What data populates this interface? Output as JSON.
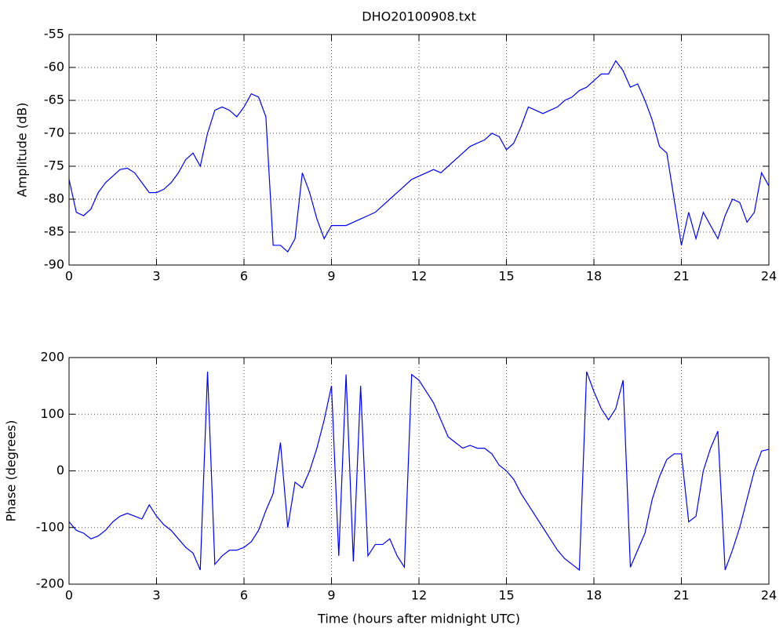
{
  "chart_data": [
    {
      "type": "line",
      "title": "DHO20100908.txt",
      "y_label": "Amplitude (dB)",
      "x": [
        0,
        0.25,
        0.5,
        0.75,
        1,
        1.25,
        1.5,
        1.75,
        2,
        2.25,
        2.5,
        2.75,
        3,
        3.25,
        3.5,
        3.75,
        4,
        4.25,
        4.5,
        4.75,
        5,
        5.25,
        5.5,
        5.75,
        6,
        6.25,
        6.5,
        6.75,
        7,
        7.25,
        7.5,
        7.75,
        8,
        8.25,
        8.5,
        8.75,
        9,
        9.25,
        9.5,
        9.75,
        10,
        10.25,
        10.5,
        10.75,
        11,
        11.25,
        11.5,
        11.75,
        12,
        12.25,
        12.5,
        12.75,
        13,
        13.25,
        13.5,
        13.75,
        14,
        14.25,
        14.5,
        14.75,
        15,
        15.25,
        15.5,
        15.75,
        16,
        16.25,
        16.5,
        16.75,
        17,
        17.25,
        17.5,
        17.75,
        18,
        18.25,
        18.5,
        18.75,
        19,
        19.25,
        19.5,
        19.75,
        20,
        20.25,
        20.5,
        20.75,
        21,
        21.25,
        21.5,
        21.75,
        22,
        22.25,
        22.5,
        22.75,
        23,
        23.25,
        23.5,
        23.75,
        24
      ],
      "series": [
        {
          "color": "#0000ff",
          "values": [
            -77,
            -82,
            -82.5,
            -81.5,
            -79,
            -77.5,
            -76.5,
            -75.5,
            -75.3,
            -76,
            -77.5,
            -79,
            -79,
            -78.5,
            -77.5,
            -76,
            -74,
            -73,
            -75,
            -70,
            -66.5,
            -66,
            -66.5,
            -67.5,
            -66,
            -64,
            -64.5,
            -67.5,
            -87,
            -87,
            -88,
            -86,
            -76,
            -79,
            -83,
            -86,
            -84,
            -84,
            -84,
            -83.5,
            -83,
            -82.5,
            -82,
            -81,
            -80,
            -79,
            -78,
            -77,
            -76.5,
            -76,
            -75.5,
            -76,
            -75,
            -74,
            -73,
            -72,
            -71.5,
            -71,
            -70,
            -70.5,
            -72.5,
            -71.5,
            -69,
            -66,
            -66.5,
            -67,
            -66.5,
            -66,
            -65,
            -64.5,
            -63.5,
            -63,
            -62,
            -61,
            -61,
            -59,
            -60.5,
            -63,
            -62.5,
            -65,
            -68,
            -72,
            -73,
            -80,
            -87,
            -82,
            -86,
            -82,
            -84,
            -86,
            -82.5,
            -80,
            -80.5,
            -83.5,
            -82,
            -76,
            -78
          ]
        }
      ],
      "xlim": [
        0,
        24
      ],
      "xticks": [
        0,
        3,
        6,
        9,
        12,
        15,
        18,
        21,
        24
      ],
      "ylim": [
        -90,
        -55
      ],
      "yticks": [
        -90,
        -85,
        -80,
        -75,
        -70,
        -65,
        -60,
        -55
      ],
      "grid": true
    },
    {
      "type": "line",
      "x_label": "Time (hours after midnight UTC)",
      "y_label": "Phase (degrees)",
      "x": [
        0,
        0.25,
        0.5,
        0.75,
        1,
        1.25,
        1.5,
        1.75,
        2,
        2.25,
        2.5,
        2.75,
        3,
        3.25,
        3.5,
        3.75,
        4,
        4.25,
        4.5,
        4.75,
        5,
        5.25,
        5.5,
        5.75,
        6,
        6.25,
        6.5,
        6.75,
        7,
        7.25,
        7.5,
        7.75,
        8,
        8.25,
        8.5,
        8.75,
        9,
        9.25,
        9.5,
        9.75,
        10,
        10.25,
        10.5,
        10.75,
        11,
        11.25,
        11.5,
        11.75,
        12,
        12.25,
        12.5,
        12.75,
        13,
        13.25,
        13.5,
        13.75,
        14,
        14.25,
        14.5,
        14.75,
        15,
        15.25,
        15.5,
        15.75,
        16,
        16.25,
        16.5,
        16.75,
        17,
        17.25,
        17.5,
        17.75,
        18,
        18.25,
        18.5,
        18.75,
        19,
        19.25,
        19.5,
        19.75,
        20,
        20.25,
        20.5,
        20.75,
        21,
        21.25,
        21.5,
        21.75,
        22,
        22.25,
        22.5,
        22.75,
        23,
        23.25,
        23.5,
        23.75,
        24
      ],
      "series": [
        {
          "color": "#0000ff",
          "values": [
            -90,
            -105,
            -110,
            -120,
            -115,
            -105,
            -90,
            -80,
            -75,
            -80,
            -85,
            -60,
            -80,
            -95,
            -105,
            -120,
            -135,
            -145,
            -175,
            175,
            -165,
            -150,
            -140,
            -140,
            -135,
            -125,
            -105,
            -70,
            -40,
            50,
            -100,
            -20,
            -30,
            0,
            40,
            90,
            150,
            -150,
            170,
            -160,
            150,
            -150,
            -130,
            -130,
            -120,
            -150,
            -170,
            170,
            160,
            140,
            120,
            90,
            60,
            50,
            40,
            45,
            40,
            40,
            30,
            10,
            0,
            -15,
            -40,
            -60,
            -80,
            -100,
            -120,
            -140,
            -155,
            -165,
            -175,
            175,
            140,
            110,
            90,
            110,
            160,
            -170,
            -140,
            -110,
            -50,
            -10,
            20,
            30,
            30,
            -90,
            -80,
            0,
            40,
            70,
            -175,
            -140,
            -100,
            -50,
            0,
            35,
            38
          ]
        }
      ],
      "xlim": [
        0,
        24
      ],
      "xticks": [
        0,
        3,
        6,
        9,
        12,
        15,
        18,
        21,
        24
      ],
      "ylim": [
        -200,
        200
      ],
      "yticks": [
        -200,
        -100,
        0,
        100,
        200
      ],
      "grid": true
    }
  ]
}
